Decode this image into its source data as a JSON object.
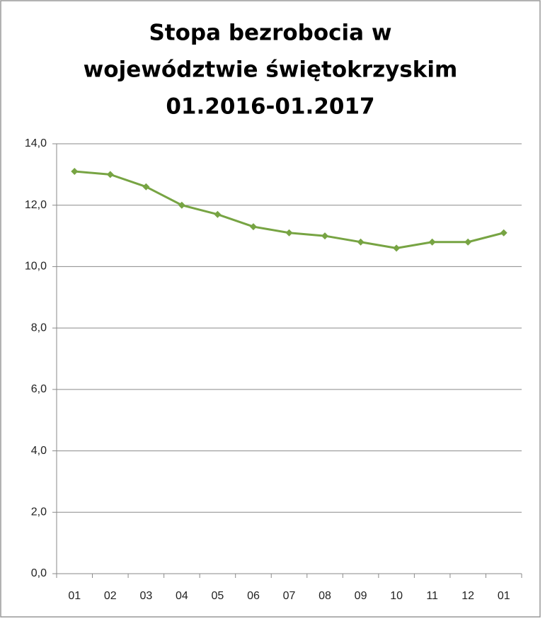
{
  "chart_data": {
    "type": "line",
    "title": [
      "Stopa bezrobocia w",
      "województwie świętokrzyskim",
      "01.2016-01.2017"
    ],
    "categories": [
      "01",
      "02",
      "03",
      "04",
      "05",
      "06",
      "07",
      "08",
      "09",
      "10",
      "11",
      "12",
      "01"
    ],
    "series": [
      {
        "color": "#77a443",
        "values": [
          13.1,
          13.0,
          12.6,
          12.0,
          11.7,
          11.3,
          11.1,
          11.0,
          10.8,
          10.6,
          10.8,
          10.8,
          11.1
        ]
      }
    ],
    "ylim": [
      0,
      14
    ],
    "yticks": [
      {
        "value": 0,
        "label": "0,0"
      },
      {
        "value": 2,
        "label": "2,0"
      },
      {
        "value": 4,
        "label": "4,0"
      },
      {
        "value": 6,
        "label": "6,0"
      },
      {
        "value": 8,
        "label": "8,0"
      },
      {
        "value": 10,
        "label": "10,0"
      },
      {
        "value": 12,
        "label": "12,0"
      },
      {
        "value": 14,
        "label": "14,0"
      }
    ],
    "grid": true
  }
}
